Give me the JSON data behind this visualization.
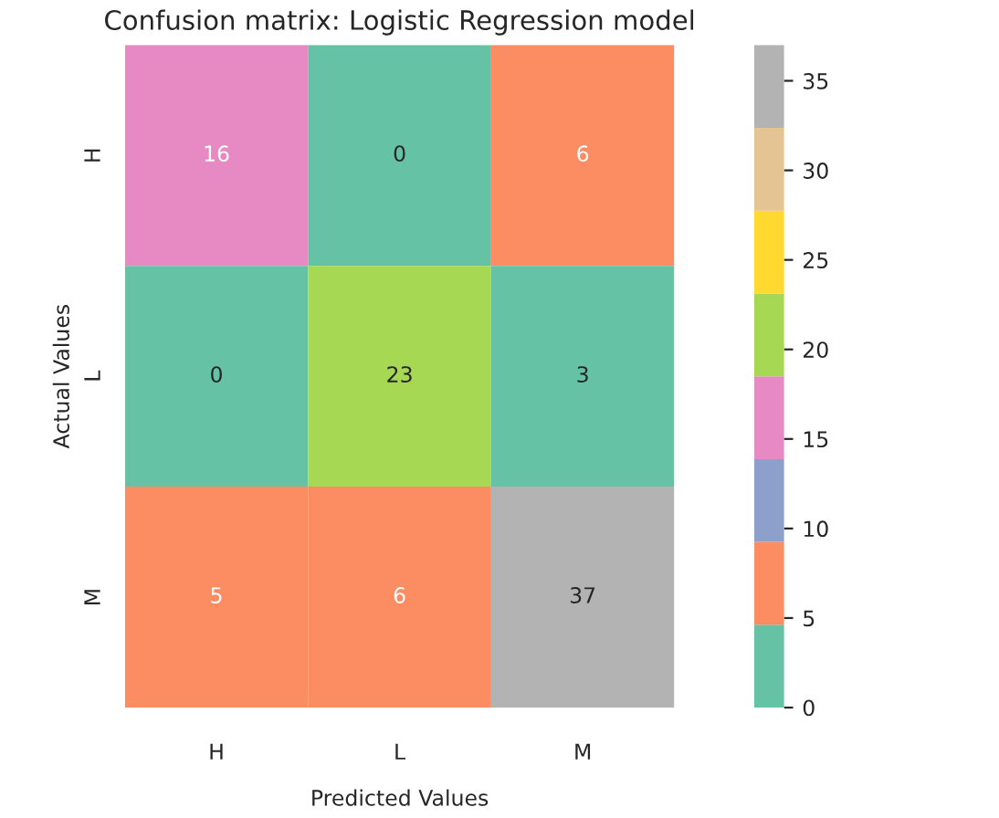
{
  "chart_data": {
    "type": "heatmap",
    "title": "Confusion matrix: Logistic Regression model",
    "xlabel": "Predicted Values",
    "ylabel": "Actual Values",
    "categories": [
      "H",
      "L",
      "M"
    ],
    "y_categories": [
      "H",
      "L",
      "M"
    ],
    "cells": [
      [
        16,
        0,
        6
      ],
      [
        0,
        23,
        3
      ],
      [
        5,
        6,
        37
      ]
    ],
    "clim": [
      0,
      37
    ],
    "cticks": [
      0,
      5,
      10,
      15,
      20,
      25,
      30,
      35
    ],
    "data_labels": true,
    "grid": false
  }
}
